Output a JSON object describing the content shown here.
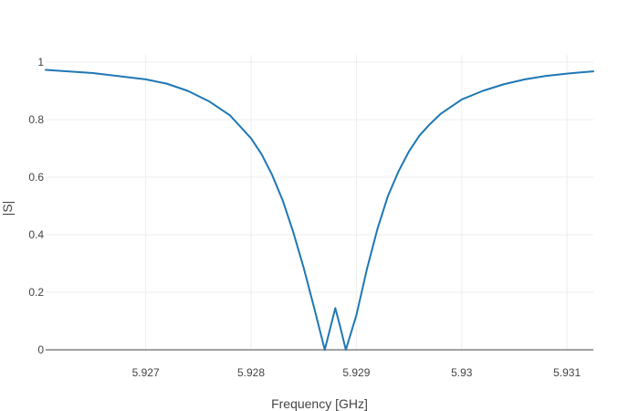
{
  "chart_data": {
    "type": "line",
    "xlabel": "Frequency [GHz]",
    "ylabel": "|S|",
    "xlim": [
      5.92605,
      5.93125
    ],
    "ylim": [
      0,
      1
    ],
    "xticks": [
      {
        "value": 5.927,
        "label": "5.927"
      },
      {
        "value": 5.928,
        "label": "5.928"
      },
      {
        "value": 5.929,
        "label": "5.929"
      },
      {
        "value": 5.93,
        "label": "5.93"
      },
      {
        "value": 5.931,
        "label": "5.931"
      }
    ],
    "yticks": [
      {
        "value": 0,
        "label": "0"
      },
      {
        "value": 0.2,
        "label": "0.2"
      },
      {
        "value": 0.4,
        "label": "0.4"
      },
      {
        "value": 0.6,
        "label": "0.6"
      },
      {
        "value": 0.8,
        "label": "0.8"
      },
      {
        "value": 1,
        "label": "1"
      }
    ],
    "grid": true,
    "color": "#1f77b4",
    "x": [
      5.92605,
      5.9265,
      5.927,
      5.9272,
      5.9274,
      5.9276,
      5.9278,
      5.928,
      5.9281,
      5.9282,
      5.9283,
      5.9284,
      5.9285,
      5.9286,
      5.9287,
      5.9288,
      5.92885,
      5.9289,
      5.929,
      5.9291,
      5.9292,
      5.9293,
      5.9294,
      5.9295,
      5.9296,
      5.9297,
      5.9298,
      5.93,
      5.9302,
      5.9304,
      5.9306,
      5.9308,
      5.931,
      5.93125
    ],
    "y": [
      0.973,
      0.962,
      0.94,
      0.925,
      0.9,
      0.864,
      0.815,
      0.735,
      0.68,
      0.608,
      0.52,
      0.41,
      0.285,
      0.145,
      0.0,
      0.145,
      0.075,
      0.0,
      0.12,
      0.28,
      0.42,
      0.535,
      0.62,
      0.69,
      0.745,
      0.785,
      0.82,
      0.87,
      0.9,
      0.923,
      0.94,
      0.952,
      0.96,
      0.968
    ]
  }
}
